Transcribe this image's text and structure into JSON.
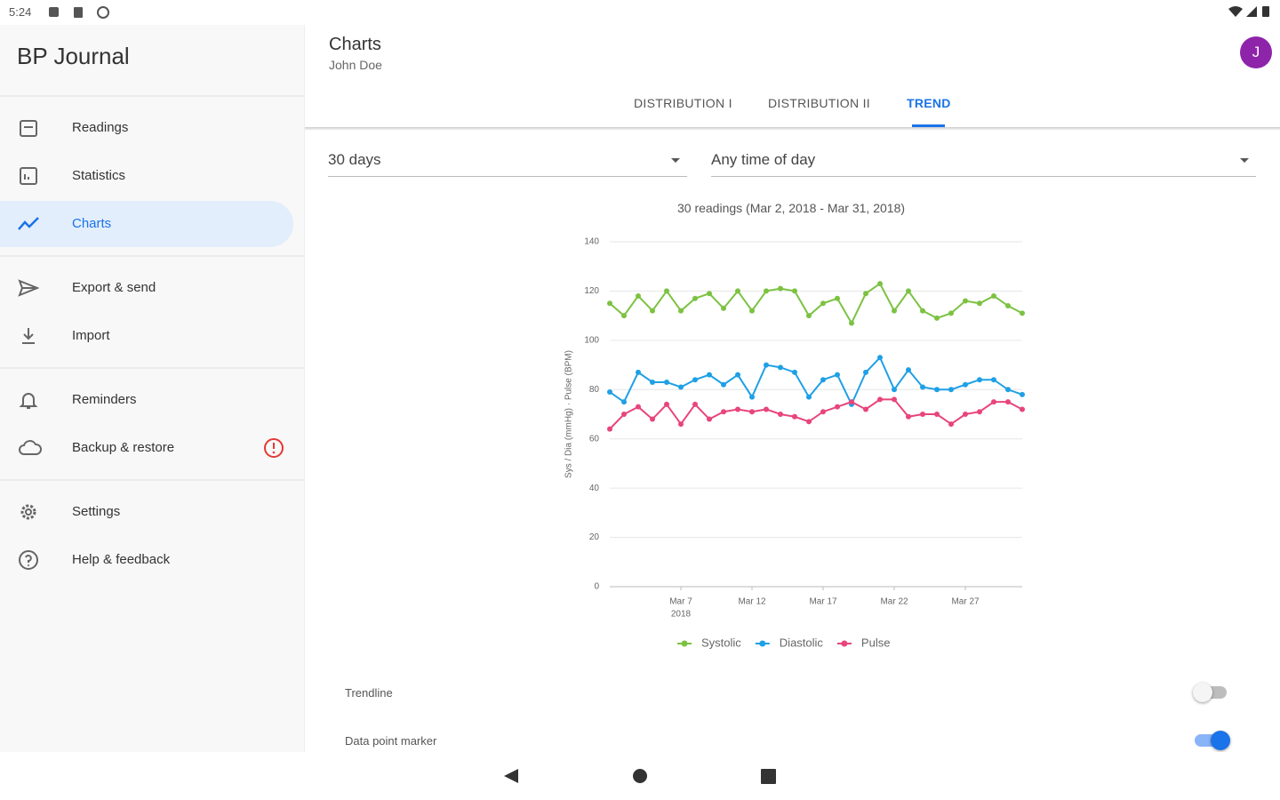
{
  "status_bar": {
    "time": "5:24"
  },
  "sidebar": {
    "title": "BP Journal",
    "items": [
      "Readings",
      "Statistics",
      "Charts",
      "Export & send",
      "Import",
      "Reminders",
      "Backup & restore",
      "Settings",
      "Help & feedback"
    ]
  },
  "header": {
    "title": "Charts",
    "subtitle": "John Doe",
    "avatar": "J"
  },
  "tabs": [
    "DISTRIBUTION I",
    "DISTRIBUTION II",
    "TREND"
  ],
  "filters": [
    "30 days",
    "Any time of day"
  ],
  "chart_data": {
    "type": "line",
    "title": "30 readings (Mar 2, 2018 - Mar 31, 2018)",
    "y_label": "Sys / Dia (mmHg) · Pulse (BPM)",
    "x": [
      "2018-03-02",
      "2018-03-03",
      "2018-03-04",
      "2018-03-05",
      "2018-03-06",
      "2018-03-07",
      "2018-03-08",
      "2018-03-09",
      "2018-03-10",
      "2018-03-11",
      "2018-03-12",
      "2018-03-13",
      "2018-03-14",
      "2018-03-15",
      "2018-03-16",
      "2018-03-17",
      "2018-03-18",
      "2018-03-19",
      "2018-03-20",
      "2018-03-21",
      "2018-03-22",
      "2018-03-23",
      "2018-03-24",
      "2018-03-25",
      "2018-03-26",
      "2018-03-27",
      "2018-03-28",
      "2018-03-29",
      "2018-03-30",
      "2018-03-31"
    ],
    "xlim": [
      "2018-03-02",
      "2018-03-31"
    ],
    "xticks": [
      {
        "value": "2018-03-07",
        "label": [
          "Mar 7",
          "2018"
        ]
      },
      {
        "value": "2018-03-12",
        "label": [
          "Mar 12"
        ]
      },
      {
        "value": "2018-03-17",
        "label": [
          "Mar 17"
        ]
      },
      {
        "value": "2018-03-22",
        "label": [
          "Mar 22"
        ]
      },
      {
        "value": "2018-03-27",
        "label": [
          "Mar 27"
        ]
      }
    ],
    "ylim": [
      0,
      140
    ],
    "yticks": [
      0,
      20,
      40,
      60,
      80,
      100,
      120,
      140
    ],
    "grid": true,
    "series": [
      {
        "name": "Systolic",
        "color": "#7cc242",
        "values": [
          115,
          110,
          118,
          112,
          120,
          112,
          117,
          119,
          113,
          120,
          112,
          120,
          121,
          120,
          110,
          115,
          117,
          107,
          119,
          123,
          112,
          120,
          112,
          109,
          111,
          116,
          115,
          118,
          114,
          111
        ]
      },
      {
        "name": "Diastolic",
        "color": "#1ea0e6",
        "values": [
          79,
          75,
          87,
          83,
          83,
          81,
          84,
          86,
          82,
          86,
          77,
          90,
          89,
          87,
          77,
          84,
          86,
          74,
          87,
          93,
          80,
          88,
          81,
          80,
          80,
          82,
          84,
          84,
          80,
          78
        ]
      },
      {
        "name": "Pulse",
        "color": "#e8457a",
        "values": [
          64,
          70,
          73,
          68,
          74,
          66,
          74,
          68,
          71,
          72,
          71,
          72,
          70,
          69,
          67,
          71,
          73,
          75,
          72,
          76,
          76,
          69,
          70,
          70,
          66,
          70,
          71,
          75,
          75,
          72
        ]
      }
    ]
  },
  "settings": [
    {
      "label": "Trendline",
      "on": false
    },
    {
      "label": "Data point marker",
      "on": true
    }
  ]
}
